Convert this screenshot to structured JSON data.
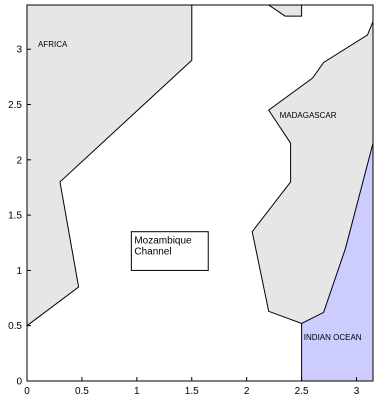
{
  "map": {
    "labels": {
      "africa": "AFRICA",
      "madagascar": "MADAGASCAR",
      "indian_ocean": "INDIAN OCEAN",
      "channel_line1": "Mozambique",
      "channel_line2": "Channel"
    },
    "x_ticks": [
      "0",
      "0.5",
      "1",
      "1.5",
      "2",
      "2.5",
      "3"
    ],
    "y_ticks": [
      "0",
      "0.5",
      "1",
      "1.5",
      "2",
      "2.5",
      "3"
    ],
    "x_range": [
      0,
      3.15
    ],
    "y_range": [
      0,
      3.4
    ],
    "colors": {
      "land": "#e6e6e6",
      "ocean_highlight": "#ccccff",
      "outline": "#000000",
      "background": "#ffffff"
    },
    "regions": {
      "africa": [
        [
          0,
          0.5
        ],
        [
          0.47,
          0.85
        ],
        [
          0.3,
          1.8
        ],
        [
          1.5,
          2.9
        ],
        [
          1.5,
          3.4
        ],
        [
          0,
          3.4
        ]
      ],
      "madagascar": [
        [
          2.2,
          2.45
        ],
        [
          2.4,
          2.15
        ],
        [
          2.4,
          1.8
        ],
        [
          2.05,
          1.35
        ],
        [
          2.2,
          0.63
        ],
        [
          2.5,
          0.52
        ],
        [
          2.7,
          0.62
        ],
        [
          2.9,
          1.2
        ],
        [
          3.15,
          2.15
        ],
        [
          3.15,
          3.25
        ],
        [
          3.1,
          3.13
        ],
        [
          2.7,
          2.88
        ],
        [
          2.6,
          2.74
        ]
      ],
      "indian_ocean": [
        [
          2.5,
          0
        ],
        [
          3.15,
          0
        ],
        [
          3.15,
          2.15
        ],
        [
          2.9,
          1.2
        ],
        [
          2.7,
          0.62
        ],
        [
          2.5,
          0.52
        ]
      ],
      "islet": [
        [
          2.2,
          3.4
        ],
        [
          2.5,
          3.4
        ],
        [
          2.5,
          3.3
        ],
        [
          2.35,
          3.3
        ]
      ]
    },
    "label_positions": {
      "africa": [
        0.1,
        3.02
      ],
      "madagascar": [
        2.3,
        2.38
      ],
      "indian_ocean": [
        2.52,
        0.37
      ],
      "channel_box": [
        0.95,
        1.0,
        1.65,
        1.35
      ]
    }
  }
}
